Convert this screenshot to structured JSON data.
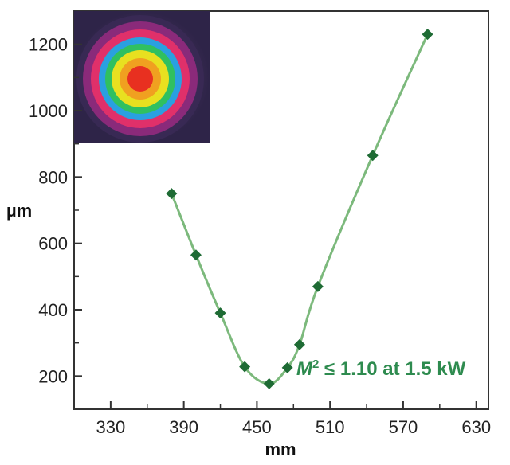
{
  "chart_data": {
    "type": "scatter",
    "xlabel": "mm",
    "ylabel": "µm",
    "xlim": [
      300,
      640
    ],
    "ylim": [
      100,
      1300
    ],
    "x_ticks": [
      330,
      390,
      450,
      510,
      570,
      630
    ],
    "y_ticks": [
      200,
      400,
      600,
      800,
      1000,
      1200
    ],
    "grid": false,
    "series": [
      {
        "marker": "diamond",
        "color": "#1e6b34",
        "x": [
          380,
          400,
          420,
          440,
          460,
          475,
          485,
          500,
          545,
          590
        ],
        "y": [
          750,
          565,
          390,
          228,
          177,
          225,
          295,
          470,
          865,
          1230
        ]
      }
    ],
    "fit_color": "#7cb97c",
    "annotation": {
      "italic": "M",
      "superscript": "2",
      "text": " ≤ 1.10 at 1.5 kW",
      "color": "#2e8b4f"
    },
    "inset": {
      "kind": "beam-profile-image",
      "colors": [
        "#3a2a55",
        "#8a2a7a",
        "#e0306a",
        "#2aa0e0",
        "#30c060",
        "#e8e020",
        "#f0a020",
        "#e83020"
      ]
    }
  }
}
